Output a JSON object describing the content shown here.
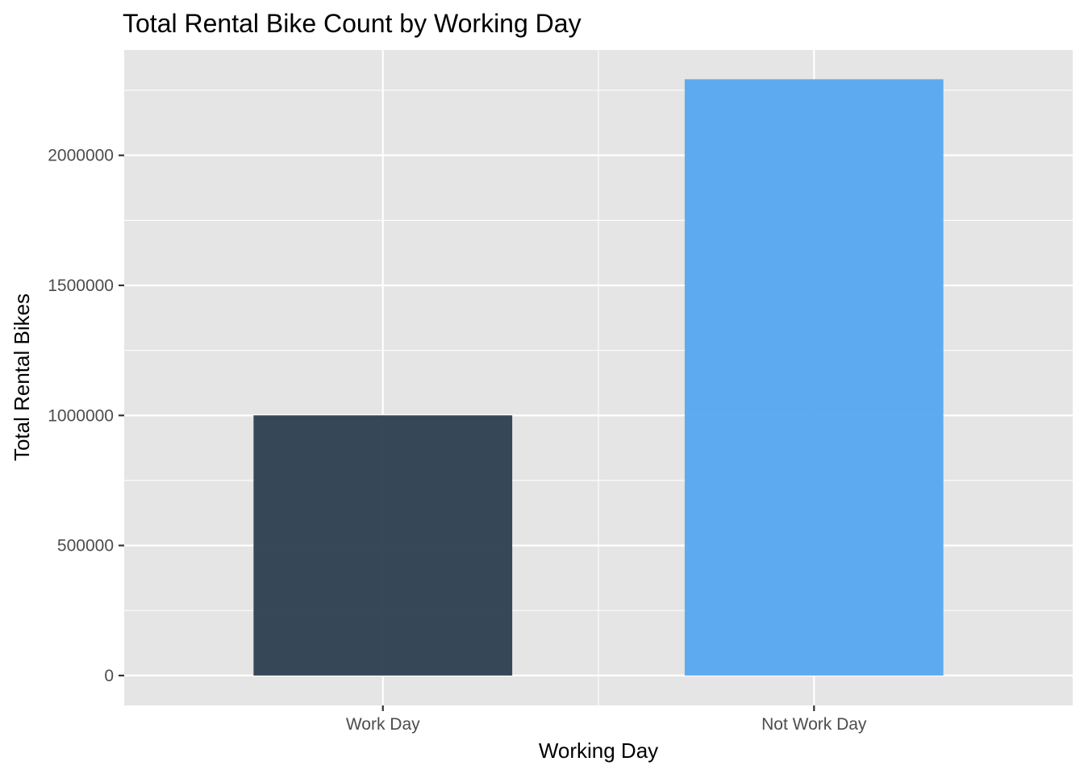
{
  "chart_data": {
    "type": "bar",
    "title": "Total Rental Bike Count by Working Day",
    "xlabel": "Working Day",
    "ylabel": "Total Rental Bikes",
    "categories": [
      "Work Day",
      "Not Work Day"
    ],
    "values": [
      1000269,
      2292410
    ],
    "bar_colors": [
      "#2c3e50",
      "#56a6f1"
    ],
    "ylim": [
      -115000,
      2405000
    ],
    "yticks": [
      0,
      500000,
      1000000,
      1500000,
      2000000
    ],
    "ytick_labels": [
      "0",
      "500000",
      "1000000",
      "1500000",
      "2000000"
    ],
    "grid": true,
    "legend": "none",
    "panel_background": "#e5e5e5",
    "grid_color": "#ffffff"
  }
}
